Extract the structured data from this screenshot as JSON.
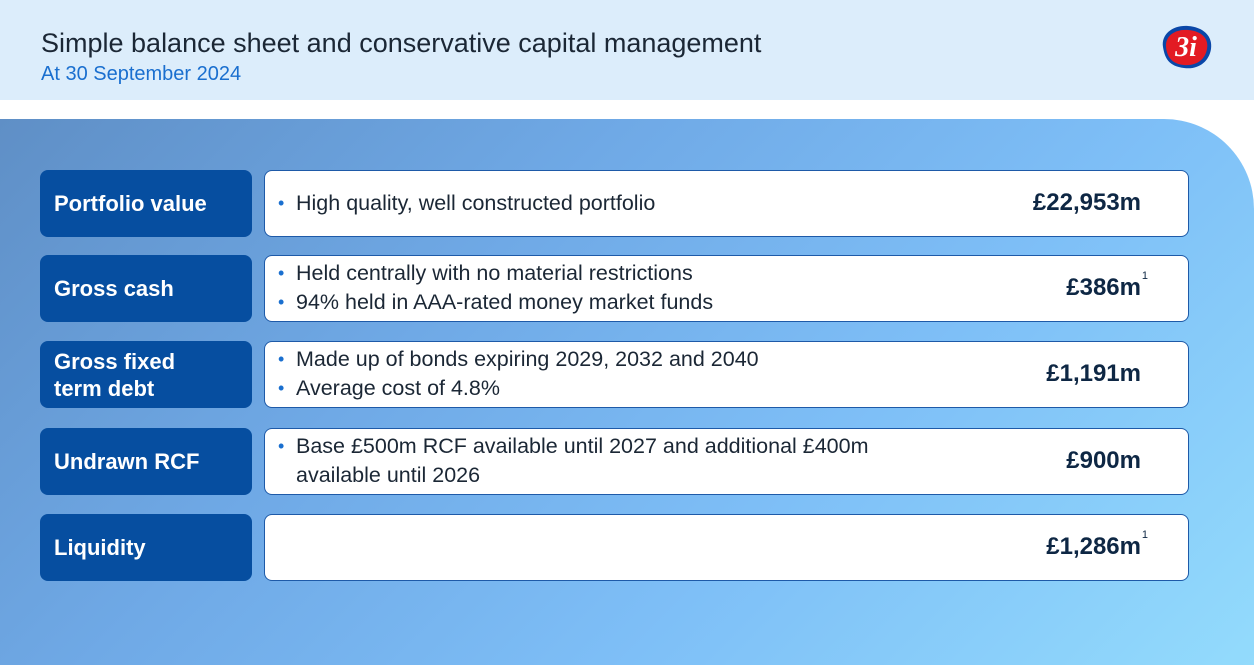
{
  "header": {
    "title": "Simple balance sheet and conservative capital management",
    "subtitle": "At 30 September 2024",
    "logo_text": "3i"
  },
  "colors": {
    "header_bg": "#dcedfb",
    "label_bg": "#064ea0",
    "accent_blue": "#1a6fcf",
    "logo_red": "#e31b23"
  },
  "rows": [
    {
      "label": "Portfolio value",
      "bullets": [
        "High quality, well constructed portfolio"
      ],
      "value": "£22,953m",
      "footnote": ""
    },
    {
      "label": "Gross cash",
      "bullets": [
        "Held centrally with no material restrictions",
        "94% held in AAA-rated money market funds"
      ],
      "value": "£386m",
      "footnote": "1"
    },
    {
      "label": "Gross fixed term debt",
      "bullets": [
        "Made up of bonds expiring 2029, 2032 and 2040",
        "Average cost of 4.8%"
      ],
      "value": "£1,191m",
      "footnote": ""
    },
    {
      "label": "Undrawn RCF",
      "bullets": [
        "Base £500m RCF available until 2027 and additional £400m available until 2026"
      ],
      "value": "£900m",
      "footnote": ""
    },
    {
      "label": "Liquidity",
      "bullets": [],
      "value": "£1,286m",
      "footnote": "1"
    }
  ]
}
